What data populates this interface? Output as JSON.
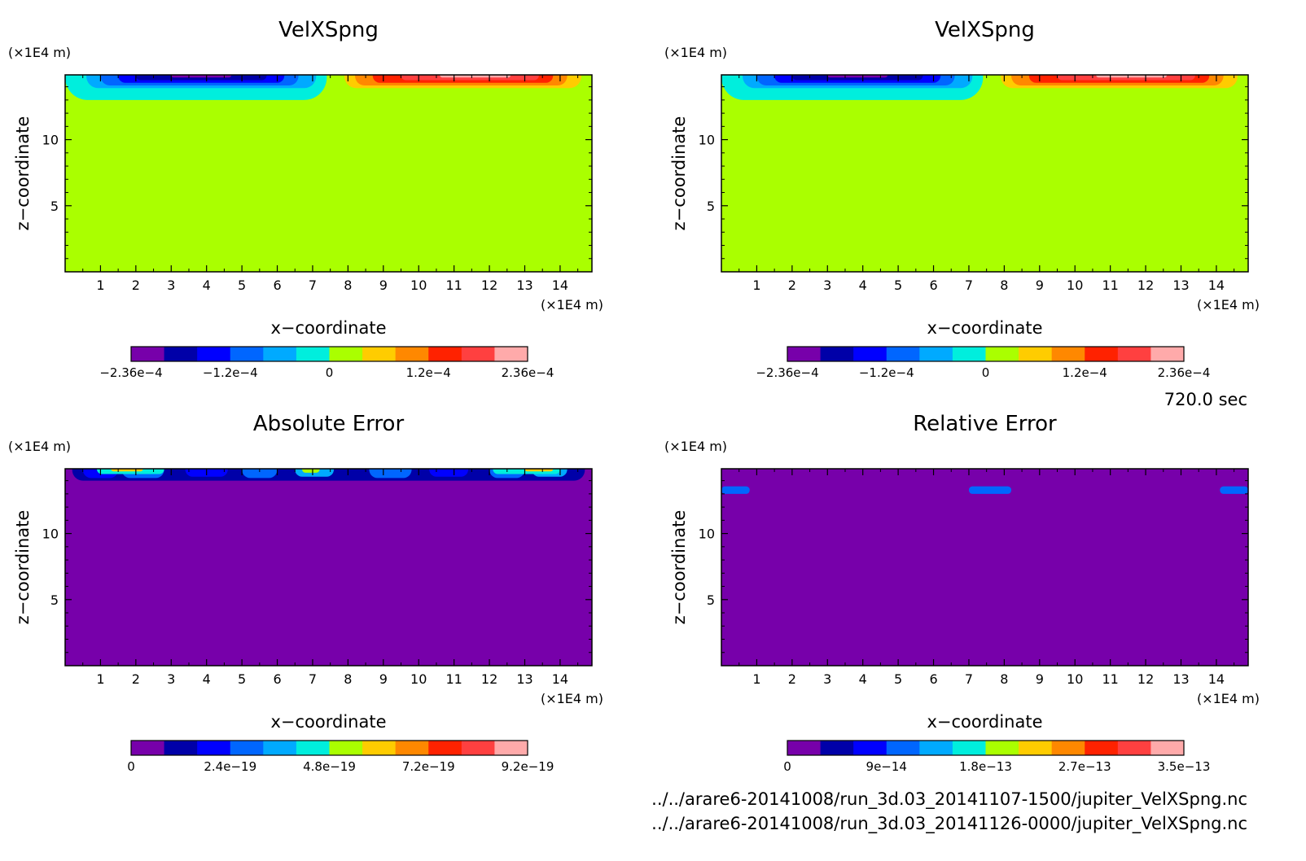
{
  "figure": {
    "time_label": "720.0 sec",
    "files": [
      "../../arare6-20141008/run_3d.03_20141107-1500/jupiter_VelXSpng.nc",
      "../../arare6-20141008/run_3d.03_20141126-0000/jupiter_VelXSpng.nc"
    ]
  },
  "colors": {
    "velocity_levels": [
      "#7700aa",
      "#0000a8",
      "#0000ff",
      "#0066ff",
      "#00aaff",
      "#00eedd",
      "#aaff00",
      "#ffcc00",
      "#ff8800",
      "#ff2200",
      "#ff4040",
      "#ffaaaa"
    ],
    "abs_error_levels": [
      "#7700aa",
      "#0000a8",
      "#0000ff",
      "#0066ff",
      "#00aaff",
      "#00eedd",
      "#aaff00",
      "#ffcc00",
      "#ff8800",
      "#ff2200",
      "#ff4040",
      "#ffaaaa"
    ],
    "rel_error_levels": [
      "#7700aa",
      "#0000a8",
      "#0000ff",
      "#0066ff",
      "#00aaff",
      "#00eedd",
      "#aaff00",
      "#ffcc00",
      "#ff8800",
      "#ff2200",
      "#ff4040",
      "#ffaaaa"
    ]
  },
  "chart_data": [
    {
      "type": "heatmap",
      "title": "VelXSpng",
      "xlabel": "x−coordinate",
      "ylabel": "z−coordinate",
      "x_unit": "(×1E4 m)",
      "z_unit": "(×1E4 m)",
      "x_ticks": [
        "1",
        "2",
        "3",
        "4",
        "5",
        "6",
        "7",
        "8",
        "9",
        "10",
        "11",
        "12",
        "13",
        "14"
      ],
      "z_ticks": [
        "5",
        "10"
      ],
      "xlim": [
        0,
        14.9
      ],
      "zlim": [
        0,
        14.9
      ],
      "background_level": 6,
      "regions": [
        {
          "x": [
            0,
            7.4
          ],
          "z": [
            13,
            14.9
          ],
          "level": 5
        },
        {
          "x": [
            0.6,
            7.1
          ],
          "z": [
            13.9,
            14.9
          ],
          "level": 4
        },
        {
          "x": [
            1.0,
            6.6
          ],
          "z": [
            14.1,
            14.9
          ],
          "level": 3
        },
        {
          "x": [
            1.5,
            6.2
          ],
          "z": [
            14.3,
            14.9
          ],
          "level": 2
        },
        {
          "x": [
            2.0,
            5.7
          ],
          "z": [
            14.5,
            14.9
          ],
          "level": 1
        },
        {
          "x": [
            3.0,
            4.7
          ],
          "z": [
            14.7,
            14.9
          ],
          "level": 0
        },
        {
          "x": [
            7.9,
            14.6
          ],
          "z": [
            13.9,
            14.9
          ],
          "level": 7
        },
        {
          "x": [
            8.2,
            14.2
          ],
          "z": [
            14.1,
            14.9
          ],
          "level": 8
        },
        {
          "x": [
            8.7,
            13.8
          ],
          "z": [
            14.3,
            14.9
          ],
          "level": 9
        },
        {
          "x": [
            9.5,
            13.4
          ],
          "z": [
            14.5,
            14.9
          ],
          "level": 10
        },
        {
          "x": [
            10.6,
            12.6
          ],
          "z": [
            14.7,
            14.9
          ],
          "level": 11
        }
      ],
      "colorbar": {
        "labels": [
          "−2.36e−4",
          "−1.2e−4",
          "0",
          "1.2e−4",
          "2.36e−4"
        ],
        "range": [
          -0.000236,
          0.000236
        ]
      }
    },
    {
      "type": "heatmap",
      "title": "VelXSpng",
      "xlabel": "x−coordinate",
      "ylabel": "z−coordinate",
      "x_unit": "(×1E4 m)",
      "z_unit": "(×1E4 m)",
      "x_ticks": [
        "1",
        "2",
        "3",
        "4",
        "5",
        "6",
        "7",
        "8",
        "9",
        "10",
        "11",
        "12",
        "13",
        "14"
      ],
      "z_ticks": [
        "5",
        "10"
      ],
      "xlim": [
        0,
        14.9
      ],
      "zlim": [
        0,
        14.9
      ],
      "background_level": 6,
      "regions": [
        {
          "x": [
            0,
            7.4
          ],
          "z": [
            13,
            14.9
          ],
          "level": 5
        },
        {
          "x": [
            0.6,
            7.1
          ],
          "z": [
            13.9,
            14.9
          ],
          "level": 4
        },
        {
          "x": [
            1.0,
            6.6
          ],
          "z": [
            14.1,
            14.9
          ],
          "level": 3
        },
        {
          "x": [
            1.5,
            6.2
          ],
          "z": [
            14.3,
            14.9
          ],
          "level": 2
        },
        {
          "x": [
            2.0,
            5.7
          ],
          "z": [
            14.5,
            14.9
          ],
          "level": 1
        },
        {
          "x": [
            3.0,
            4.7
          ],
          "z": [
            14.7,
            14.9
          ],
          "level": 0
        },
        {
          "x": [
            7.9,
            14.6
          ],
          "z": [
            13.9,
            14.9
          ],
          "level": 7
        },
        {
          "x": [
            8.2,
            14.2
          ],
          "z": [
            14.1,
            14.9
          ],
          "level": 8
        },
        {
          "x": [
            8.7,
            13.8
          ],
          "z": [
            14.3,
            14.9
          ],
          "level": 9
        },
        {
          "x": [
            9.5,
            13.4
          ],
          "z": [
            14.5,
            14.9
          ],
          "level": 10
        },
        {
          "x": [
            10.6,
            12.6
          ],
          "z": [
            14.7,
            14.9
          ],
          "level": 11
        }
      ],
      "colorbar": {
        "labels": [
          "−2.36e−4",
          "−1.2e−4",
          "0",
          "1.2e−4",
          "2.36e−4"
        ],
        "range": [
          -0.000236,
          0.000236
        ]
      }
    },
    {
      "type": "heatmap",
      "title": "Absolute Error",
      "xlabel": "x−coordinate",
      "ylabel": "z−coordinate",
      "x_unit": "(×1E4 m)",
      "z_unit": "(×1E4 m)",
      "x_ticks": [
        "1",
        "2",
        "3",
        "4",
        "5",
        "6",
        "7",
        "8",
        "9",
        "10",
        "11",
        "12",
        "13",
        "14"
      ],
      "z_ticks": [
        "5",
        "10"
      ],
      "xlim": [
        0,
        14.9
      ],
      "zlim": [
        0,
        14.9
      ],
      "background_level": 0,
      "regions": [
        {
          "x": [
            0.2,
            14.7
          ],
          "z": [
            14.0,
            14.9
          ],
          "level": 1
        },
        {
          "x": [
            0.5,
            1.5
          ],
          "z": [
            14.2,
            14.9
          ],
          "level": 2
        },
        {
          "x": [
            1.6,
            2.8
          ],
          "z": [
            14.2,
            14.9
          ],
          "level": 3
        },
        {
          "x": [
            3.4,
            4.6
          ],
          "z": [
            14.3,
            14.9
          ],
          "level": 2
        },
        {
          "x": [
            5.0,
            6.0
          ],
          "z": [
            14.2,
            14.9
          ],
          "level": 3
        },
        {
          "x": [
            6.5,
            7.6
          ],
          "z": [
            14.3,
            14.9
          ],
          "level": 4
        },
        {
          "x": [
            8.6,
            9.8
          ],
          "z": [
            14.2,
            14.9
          ],
          "level": 3
        },
        {
          "x": [
            10.3,
            11.4
          ],
          "z": [
            14.3,
            14.9
          ],
          "level": 2
        },
        {
          "x": [
            12.0,
            13.0
          ],
          "z": [
            14.2,
            14.9
          ],
          "level": 3
        },
        {
          "x": [
            13.2,
            14.2
          ],
          "z": [
            14.3,
            14.9
          ],
          "level": 4
        },
        {
          "x": [
            0.9,
            2.8
          ],
          "z": [
            14.5,
            14.9
          ],
          "level": 5
        },
        {
          "x": [
            1.3,
            2.2
          ],
          "z": [
            14.7,
            14.9
          ],
          "level": 7
        },
        {
          "x": [
            6.7,
            7.2
          ],
          "z": [
            14.6,
            14.9
          ],
          "level": 6
        },
        {
          "x": [
            12.1,
            14.0
          ],
          "z": [
            14.5,
            14.9
          ],
          "level": 5
        },
        {
          "x": [
            13.0,
            13.8
          ],
          "z": [
            14.7,
            14.9
          ],
          "level": 7
        }
      ],
      "colorbar": {
        "labels": [
          "0",
          "2.4e−19",
          "4.8e−19",
          "7.2e−19",
          "9.2e−19"
        ],
        "range": [
          0,
          9.2e-19
        ]
      }
    },
    {
      "type": "heatmap",
      "title": "Relative Error",
      "xlabel": "x−coordinate",
      "ylabel": "z−coordinate",
      "x_unit": "(×1E4 m)",
      "z_unit": "(×1E4 m)",
      "x_ticks": [
        "1",
        "2",
        "3",
        "4",
        "5",
        "6",
        "7",
        "8",
        "9",
        "10",
        "11",
        "12",
        "13",
        "14"
      ],
      "z_ticks": [
        "5",
        "10"
      ],
      "xlim": [
        0,
        14.9
      ],
      "zlim": [
        0,
        14.9
      ],
      "background_level": 0,
      "regions": [
        {
          "x": [
            0.0,
            0.8
          ],
          "z": [
            13.0,
            13.3
          ],
          "level": 3
        },
        {
          "x": [
            7.0,
            8.2
          ],
          "z": [
            13.0,
            13.3
          ],
          "level": 3
        },
        {
          "x": [
            14.1,
            14.9
          ],
          "z": [
            13.0,
            13.3
          ],
          "level": 3
        }
      ],
      "colorbar": {
        "labels": [
          "0",
          "9e−14",
          "1.8e−13",
          "2.7e−13",
          "3.5e−13"
        ],
        "range": [
          0,
          3.5e-13
        ]
      }
    }
  ]
}
